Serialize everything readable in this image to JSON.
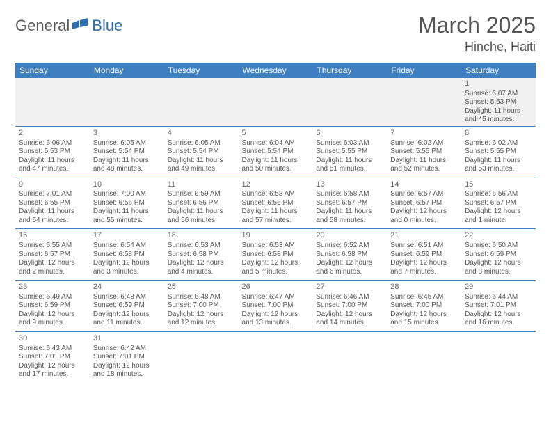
{
  "logo": {
    "part1": "General",
    "part2": "Blue"
  },
  "title": "March 2025",
  "location": "Hinche, Haiti",
  "colors": {
    "header_bg": "#3d7fc1",
    "header_text": "#ffffff",
    "row_border": "#3d7fc1",
    "empty_bg": "#f0f0f0",
    "text": "#555555",
    "logo_gray": "#5a5a5a",
    "logo_blue": "#2f6fb0"
  },
  "daynames": [
    "Sunday",
    "Monday",
    "Tuesday",
    "Wednesday",
    "Thursday",
    "Friday",
    "Saturday"
  ],
  "weeks": [
    [
      {
        "n": "",
        "sr": "",
        "ss": "",
        "dl": ""
      },
      {
        "n": "",
        "sr": "",
        "ss": "",
        "dl": ""
      },
      {
        "n": "",
        "sr": "",
        "ss": "",
        "dl": ""
      },
      {
        "n": "",
        "sr": "",
        "ss": "",
        "dl": ""
      },
      {
        "n": "",
        "sr": "",
        "ss": "",
        "dl": ""
      },
      {
        "n": "",
        "sr": "",
        "ss": "",
        "dl": ""
      },
      {
        "n": "1",
        "sr": "Sunrise: 6:07 AM",
        "ss": "Sunset: 5:53 PM",
        "dl": "Daylight: 11 hours and 45 minutes."
      }
    ],
    [
      {
        "n": "2",
        "sr": "Sunrise: 6:06 AM",
        "ss": "Sunset: 5:53 PM",
        "dl": "Daylight: 11 hours and 47 minutes."
      },
      {
        "n": "3",
        "sr": "Sunrise: 6:05 AM",
        "ss": "Sunset: 5:54 PM",
        "dl": "Daylight: 11 hours and 48 minutes."
      },
      {
        "n": "4",
        "sr": "Sunrise: 6:05 AM",
        "ss": "Sunset: 5:54 PM",
        "dl": "Daylight: 11 hours and 49 minutes."
      },
      {
        "n": "5",
        "sr": "Sunrise: 6:04 AM",
        "ss": "Sunset: 5:54 PM",
        "dl": "Daylight: 11 hours and 50 minutes."
      },
      {
        "n": "6",
        "sr": "Sunrise: 6:03 AM",
        "ss": "Sunset: 5:55 PM",
        "dl": "Daylight: 11 hours and 51 minutes."
      },
      {
        "n": "7",
        "sr": "Sunrise: 6:02 AM",
        "ss": "Sunset: 5:55 PM",
        "dl": "Daylight: 11 hours and 52 minutes."
      },
      {
        "n": "8",
        "sr": "Sunrise: 6:02 AM",
        "ss": "Sunset: 5:55 PM",
        "dl": "Daylight: 11 hours and 53 minutes."
      }
    ],
    [
      {
        "n": "9",
        "sr": "Sunrise: 7:01 AM",
        "ss": "Sunset: 6:55 PM",
        "dl": "Daylight: 11 hours and 54 minutes."
      },
      {
        "n": "10",
        "sr": "Sunrise: 7:00 AM",
        "ss": "Sunset: 6:56 PM",
        "dl": "Daylight: 11 hours and 55 minutes."
      },
      {
        "n": "11",
        "sr": "Sunrise: 6:59 AM",
        "ss": "Sunset: 6:56 PM",
        "dl": "Daylight: 11 hours and 56 minutes."
      },
      {
        "n": "12",
        "sr": "Sunrise: 6:58 AM",
        "ss": "Sunset: 6:56 PM",
        "dl": "Daylight: 11 hours and 57 minutes."
      },
      {
        "n": "13",
        "sr": "Sunrise: 6:58 AM",
        "ss": "Sunset: 6:57 PM",
        "dl": "Daylight: 11 hours and 58 minutes."
      },
      {
        "n": "14",
        "sr": "Sunrise: 6:57 AM",
        "ss": "Sunset: 6:57 PM",
        "dl": "Daylight: 12 hours and 0 minutes."
      },
      {
        "n": "15",
        "sr": "Sunrise: 6:56 AM",
        "ss": "Sunset: 6:57 PM",
        "dl": "Daylight: 12 hours and 1 minute."
      }
    ],
    [
      {
        "n": "16",
        "sr": "Sunrise: 6:55 AM",
        "ss": "Sunset: 6:57 PM",
        "dl": "Daylight: 12 hours and 2 minutes."
      },
      {
        "n": "17",
        "sr": "Sunrise: 6:54 AM",
        "ss": "Sunset: 6:58 PM",
        "dl": "Daylight: 12 hours and 3 minutes."
      },
      {
        "n": "18",
        "sr": "Sunrise: 6:53 AM",
        "ss": "Sunset: 6:58 PM",
        "dl": "Daylight: 12 hours and 4 minutes."
      },
      {
        "n": "19",
        "sr": "Sunrise: 6:53 AM",
        "ss": "Sunset: 6:58 PM",
        "dl": "Daylight: 12 hours and 5 minutes."
      },
      {
        "n": "20",
        "sr": "Sunrise: 6:52 AM",
        "ss": "Sunset: 6:58 PM",
        "dl": "Daylight: 12 hours and 6 minutes."
      },
      {
        "n": "21",
        "sr": "Sunrise: 6:51 AM",
        "ss": "Sunset: 6:59 PM",
        "dl": "Daylight: 12 hours and 7 minutes."
      },
      {
        "n": "22",
        "sr": "Sunrise: 6:50 AM",
        "ss": "Sunset: 6:59 PM",
        "dl": "Daylight: 12 hours and 8 minutes."
      }
    ],
    [
      {
        "n": "23",
        "sr": "Sunrise: 6:49 AM",
        "ss": "Sunset: 6:59 PM",
        "dl": "Daylight: 12 hours and 9 minutes."
      },
      {
        "n": "24",
        "sr": "Sunrise: 6:48 AM",
        "ss": "Sunset: 6:59 PM",
        "dl": "Daylight: 12 hours and 11 minutes."
      },
      {
        "n": "25",
        "sr": "Sunrise: 6:48 AM",
        "ss": "Sunset: 7:00 PM",
        "dl": "Daylight: 12 hours and 12 minutes."
      },
      {
        "n": "26",
        "sr": "Sunrise: 6:47 AM",
        "ss": "Sunset: 7:00 PM",
        "dl": "Daylight: 12 hours and 13 minutes."
      },
      {
        "n": "27",
        "sr": "Sunrise: 6:46 AM",
        "ss": "Sunset: 7:00 PM",
        "dl": "Daylight: 12 hours and 14 minutes."
      },
      {
        "n": "28",
        "sr": "Sunrise: 6:45 AM",
        "ss": "Sunset: 7:00 PM",
        "dl": "Daylight: 12 hours and 15 minutes."
      },
      {
        "n": "29",
        "sr": "Sunrise: 6:44 AM",
        "ss": "Sunset: 7:01 PM",
        "dl": "Daylight: 12 hours and 16 minutes."
      }
    ],
    [
      {
        "n": "30",
        "sr": "Sunrise: 6:43 AM",
        "ss": "Sunset: 7:01 PM",
        "dl": "Daylight: 12 hours and 17 minutes."
      },
      {
        "n": "31",
        "sr": "Sunrise: 6:42 AM",
        "ss": "Sunset: 7:01 PM",
        "dl": "Daylight: 12 hours and 18 minutes."
      },
      {
        "n": "",
        "sr": "",
        "ss": "",
        "dl": ""
      },
      {
        "n": "",
        "sr": "",
        "ss": "",
        "dl": ""
      },
      {
        "n": "",
        "sr": "",
        "ss": "",
        "dl": ""
      },
      {
        "n": "",
        "sr": "",
        "ss": "",
        "dl": ""
      },
      {
        "n": "",
        "sr": "",
        "ss": "",
        "dl": ""
      }
    ]
  ]
}
